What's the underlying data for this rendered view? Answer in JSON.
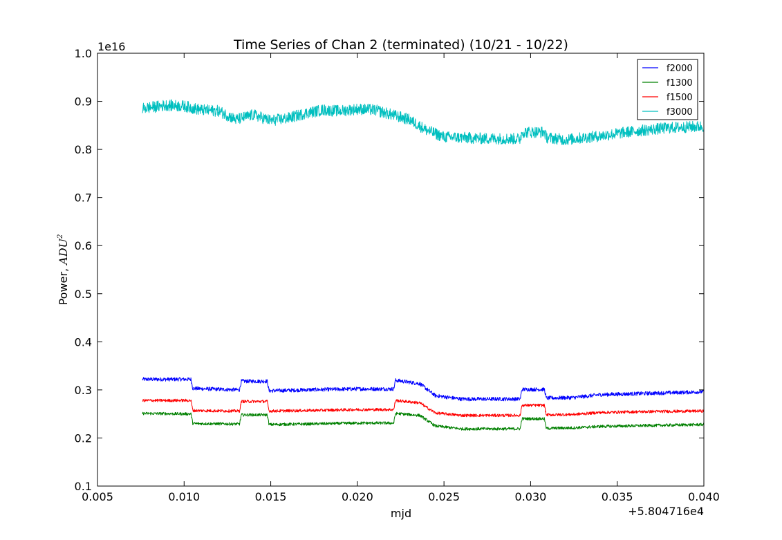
{
  "chart_data": {
    "type": "line",
    "title": "Time Series of Chan 2 (terminated) (10/21 - 10/22)",
    "xlabel": "mjd",
    "ylabel_prefix": "Power, ",
    "ylabel_math": "ADU",
    "ylabel_sup": "2",
    "x_offset_label": "+5.804716e4",
    "y_scale_label": "1e16",
    "xlim": [
      0.005,
      0.04
    ],
    "ylim": [
      0.1,
      1.0
    ],
    "x_ticks": [
      "0.005",
      "0.010",
      "0.015",
      "0.020",
      "0.025",
      "0.030",
      "0.035",
      "0.040"
    ],
    "y_ticks": [
      "0.1",
      "0.2",
      "0.3",
      "0.4",
      "0.5",
      "0.6",
      "0.7",
      "0.8",
      "0.9",
      "1.0"
    ],
    "legend_position": "top-right",
    "series": [
      {
        "name": "f2000",
        "color": "#0000ff",
        "noise": 0.004,
        "points": [
          [
            0.0076,
            0.322
          ],
          [
            0.0104,
            0.322
          ],
          [
            0.0105,
            0.303
          ],
          [
            0.0132,
            0.3
          ],
          [
            0.0133,
            0.318
          ],
          [
            0.0148,
            0.318
          ],
          [
            0.0149,
            0.298
          ],
          [
            0.017,
            0.3
          ],
          [
            0.02,
            0.302
          ],
          [
            0.0221,
            0.302
          ],
          [
            0.0222,
            0.32
          ],
          [
            0.0236,
            0.313
          ],
          [
            0.0245,
            0.288
          ],
          [
            0.026,
            0.281
          ],
          [
            0.0294,
            0.281
          ],
          [
            0.0295,
            0.301
          ],
          [
            0.0308,
            0.301
          ],
          [
            0.0309,
            0.283
          ],
          [
            0.0325,
            0.284
          ],
          [
            0.034,
            0.29
          ],
          [
            0.037,
            0.293
          ],
          [
            0.04,
            0.296
          ]
        ]
      },
      {
        "name": "f1300",
        "color": "#008000",
        "noise": 0.003,
        "points": [
          [
            0.0076,
            0.251
          ],
          [
            0.0104,
            0.25
          ],
          [
            0.0105,
            0.23
          ],
          [
            0.0132,
            0.229
          ],
          [
            0.0133,
            0.248
          ],
          [
            0.0148,
            0.248
          ],
          [
            0.0149,
            0.228
          ],
          [
            0.017,
            0.229
          ],
          [
            0.02,
            0.231
          ],
          [
            0.0221,
            0.231
          ],
          [
            0.0222,
            0.251
          ],
          [
            0.0236,
            0.247
          ],
          [
            0.0245,
            0.225
          ],
          [
            0.026,
            0.219
          ],
          [
            0.0294,
            0.219
          ],
          [
            0.0295,
            0.24
          ],
          [
            0.0308,
            0.24
          ],
          [
            0.0309,
            0.22
          ],
          [
            0.0325,
            0.221
          ],
          [
            0.034,
            0.224
          ],
          [
            0.037,
            0.226
          ],
          [
            0.04,
            0.228
          ]
        ]
      },
      {
        "name": "f1500",
        "color": "#ff0000",
        "noise": 0.003,
        "points": [
          [
            0.0076,
            0.278
          ],
          [
            0.0104,
            0.278
          ],
          [
            0.0105,
            0.257
          ],
          [
            0.0132,
            0.256
          ],
          [
            0.0133,
            0.276
          ],
          [
            0.0148,
            0.276
          ],
          [
            0.0149,
            0.256
          ],
          [
            0.017,
            0.257
          ],
          [
            0.02,
            0.259
          ],
          [
            0.0221,
            0.259
          ],
          [
            0.0222,
            0.278
          ],
          [
            0.0236,
            0.273
          ],
          [
            0.0245,
            0.252
          ],
          [
            0.026,
            0.247
          ],
          [
            0.0294,
            0.247
          ],
          [
            0.0295,
            0.268
          ],
          [
            0.0308,
            0.268
          ],
          [
            0.0309,
            0.248
          ],
          [
            0.0325,
            0.249
          ],
          [
            0.034,
            0.253
          ],
          [
            0.037,
            0.255
          ],
          [
            0.04,
            0.256
          ]
        ]
      },
      {
        "name": "f3000",
        "color": "#00bfbf",
        "noise": 0.012,
        "points": [
          [
            0.0076,
            0.885
          ],
          [
            0.009,
            0.892
          ],
          [
            0.01,
            0.89
          ],
          [
            0.011,
            0.882
          ],
          [
            0.012,
            0.88
          ],
          [
            0.013,
            0.862
          ],
          [
            0.014,
            0.872
          ],
          [
            0.015,
            0.86
          ],
          [
            0.016,
            0.865
          ],
          [
            0.017,
            0.875
          ],
          [
            0.018,
            0.882
          ],
          [
            0.019,
            0.88
          ],
          [
            0.02,
            0.884
          ],
          [
            0.021,
            0.882
          ],
          [
            0.022,
            0.872
          ],
          [
            0.023,
            0.862
          ],
          [
            0.024,
            0.84
          ],
          [
            0.025,
            0.826
          ],
          [
            0.027,
            0.823
          ],
          [
            0.0294,
            0.822
          ],
          [
            0.0295,
            0.836
          ],
          [
            0.0308,
            0.836
          ],
          [
            0.0309,
            0.825
          ],
          [
            0.032,
            0.82
          ],
          [
            0.034,
            0.828
          ],
          [
            0.036,
            0.838
          ],
          [
            0.038,
            0.845
          ],
          [
            0.04,
            0.848
          ]
        ]
      }
    ]
  }
}
